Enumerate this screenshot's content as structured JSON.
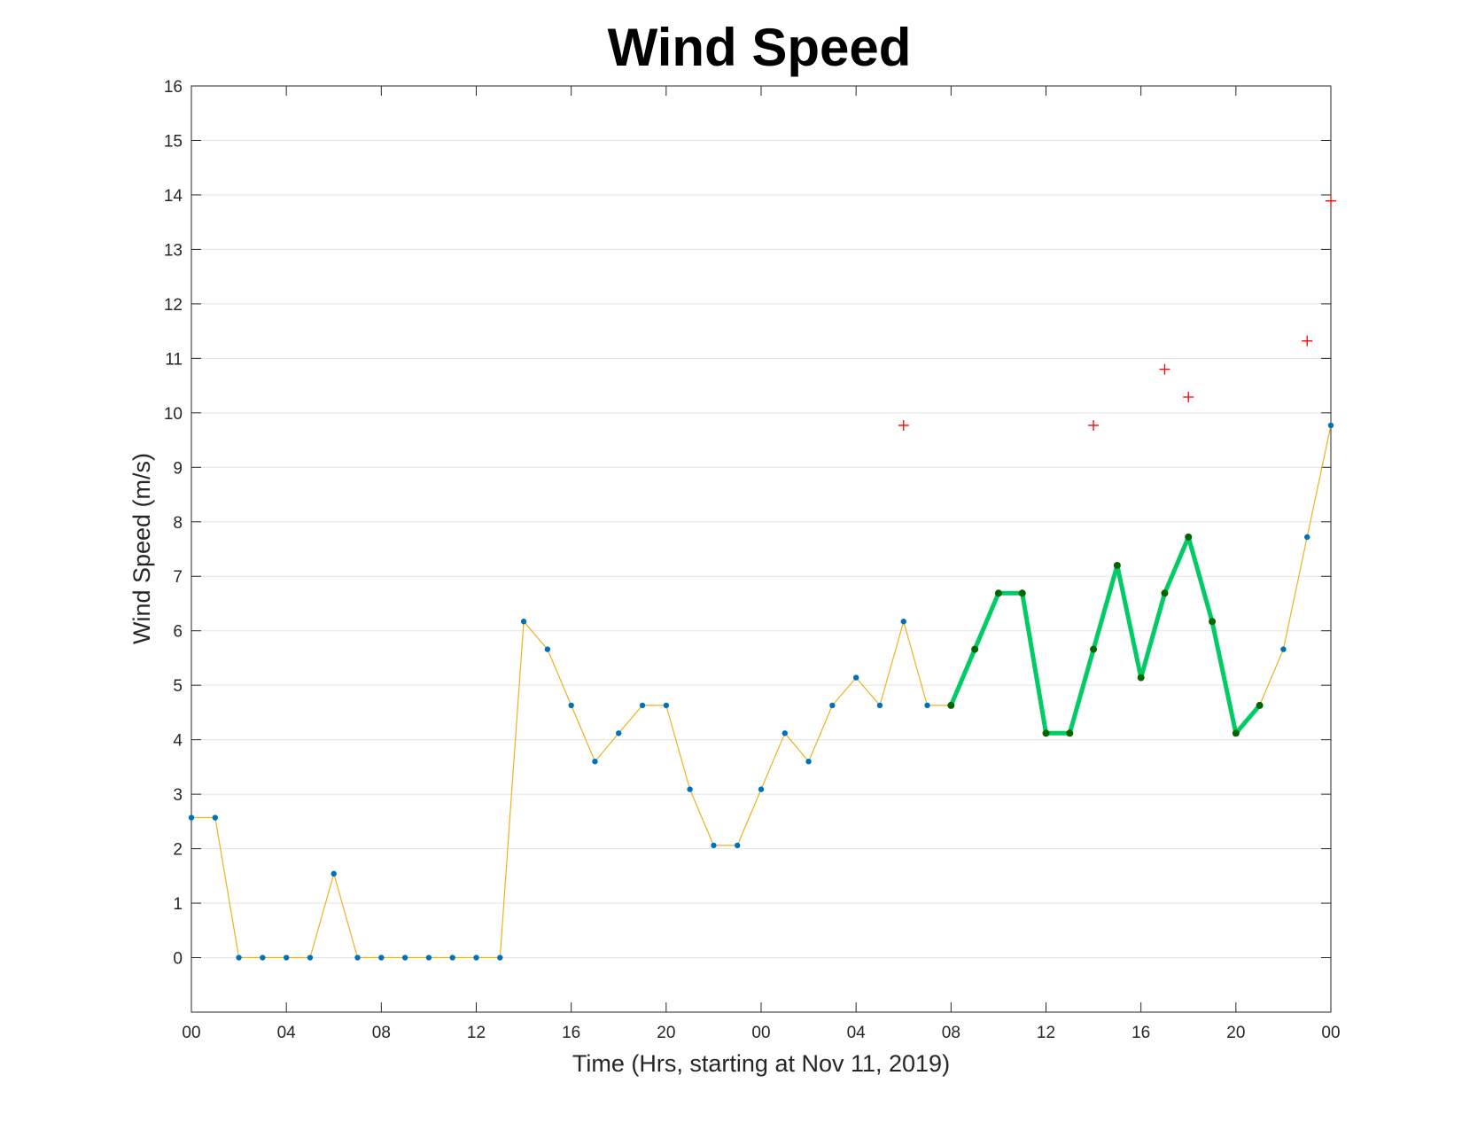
{
  "chart_data": {
    "type": "line",
    "title": "Wind Speed",
    "xlabel": "Time (Hrs, starting at Nov 11, 2019)",
    "ylabel": "Wind Speed (m/s)",
    "xlim": [
      0,
      48
    ],
    "ylim": [
      -1,
      16
    ],
    "grid": "horizontal",
    "x_ticks": [
      {
        "x": 0,
        "label": "00"
      },
      {
        "x": 4,
        "label": "04"
      },
      {
        "x": 8,
        "label": "08"
      },
      {
        "x": 12,
        "label": "12"
      },
      {
        "x": 16,
        "label": "16"
      },
      {
        "x": 20,
        "label": "20"
      },
      {
        "x": 24,
        "label": "00"
      },
      {
        "x": 28,
        "label": "04"
      },
      {
        "x": 32,
        "label": "08"
      },
      {
        "x": 36,
        "label": "12"
      },
      {
        "x": 40,
        "label": "16"
      },
      {
        "x": 44,
        "label": "20"
      },
      {
        "x": 48,
        "label": "00"
      }
    ],
    "y_ticks": [
      0,
      1,
      2,
      3,
      4,
      5,
      6,
      7,
      8,
      9,
      10,
      11,
      12,
      13,
      14,
      15,
      16
    ],
    "series": [
      {
        "style": "thin-line-with-markers",
        "line_color": "#EDB120",
        "marker_color": "#0072BD",
        "x": [
          0,
          1,
          2,
          3,
          4,
          5,
          6,
          7,
          8,
          9,
          10,
          11,
          12,
          13,
          14,
          15,
          16,
          17,
          18,
          19,
          20,
          21,
          22,
          23,
          24,
          25,
          26,
          27,
          28,
          29,
          30,
          31,
          32,
          33,
          34,
          35,
          36,
          37,
          38,
          39,
          40,
          41,
          42,
          43,
          44,
          45,
          46,
          47,
          48
        ],
        "y": [
          2.57,
          2.57,
          0,
          0,
          0,
          0,
          1.54,
          0,
          0,
          0,
          0,
          0,
          0,
          0,
          6.17,
          5.66,
          4.63,
          3.6,
          4.12,
          4.63,
          4.63,
          3.09,
          2.06,
          2.06,
          3.09,
          4.12,
          3.6,
          4.63,
          5.14,
          4.63,
          6.17,
          4.63,
          4.63,
          5.66,
          6.69,
          6.69,
          4.12,
          4.12,
          5.66,
          7.2,
          5.14,
          6.69,
          7.72,
          6.17,
          4.12,
          4.63,
          5.66,
          7.72,
          9.77
        ]
      },
      {
        "style": "thick-highlight",
        "line_color": "#00CC66",
        "marker_color": "#006600",
        "x": [
          32,
          33,
          34,
          35,
          36,
          37,
          38,
          39,
          40,
          41,
          42,
          43,
          44,
          45
        ],
        "y": [
          4.63,
          5.66,
          6.69,
          6.69,
          4.12,
          4.12,
          5.66,
          7.2,
          5.14,
          6.69,
          7.72,
          6.17,
          4.12,
          4.63
        ]
      },
      {
        "style": "plus-markers",
        "marker_color": "#FF0000",
        "x": [
          30,
          38,
          41,
          42,
          47,
          48
        ],
        "y": [
          9.77,
          9.77,
          10.8,
          10.29,
          11.32,
          13.89
        ]
      }
    ]
  }
}
